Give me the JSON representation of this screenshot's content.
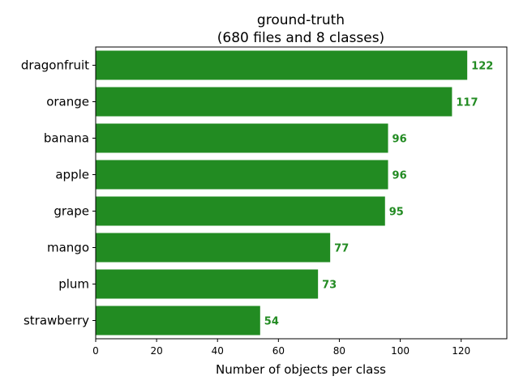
{
  "chart_data": {
    "type": "bar",
    "orientation": "horizontal",
    "title": "ground-truth",
    "subtitle": "(680 files and 8 classes)",
    "xlabel": "Number of objects per class",
    "ylabel": "",
    "categories": [
      "dragonfruit",
      "orange",
      "banana",
      "apple",
      "grape",
      "mango",
      "plum",
      "strawberry"
    ],
    "values": [
      122,
      117,
      96,
      96,
      95,
      77,
      73,
      54
    ],
    "xlim": [
      0,
      135
    ],
    "xticks": [
      0,
      20,
      40,
      60,
      80,
      100,
      120
    ],
    "bar_color": "#228b22",
    "value_label_color": "#228b22",
    "grid": false,
    "legend": "none"
  }
}
